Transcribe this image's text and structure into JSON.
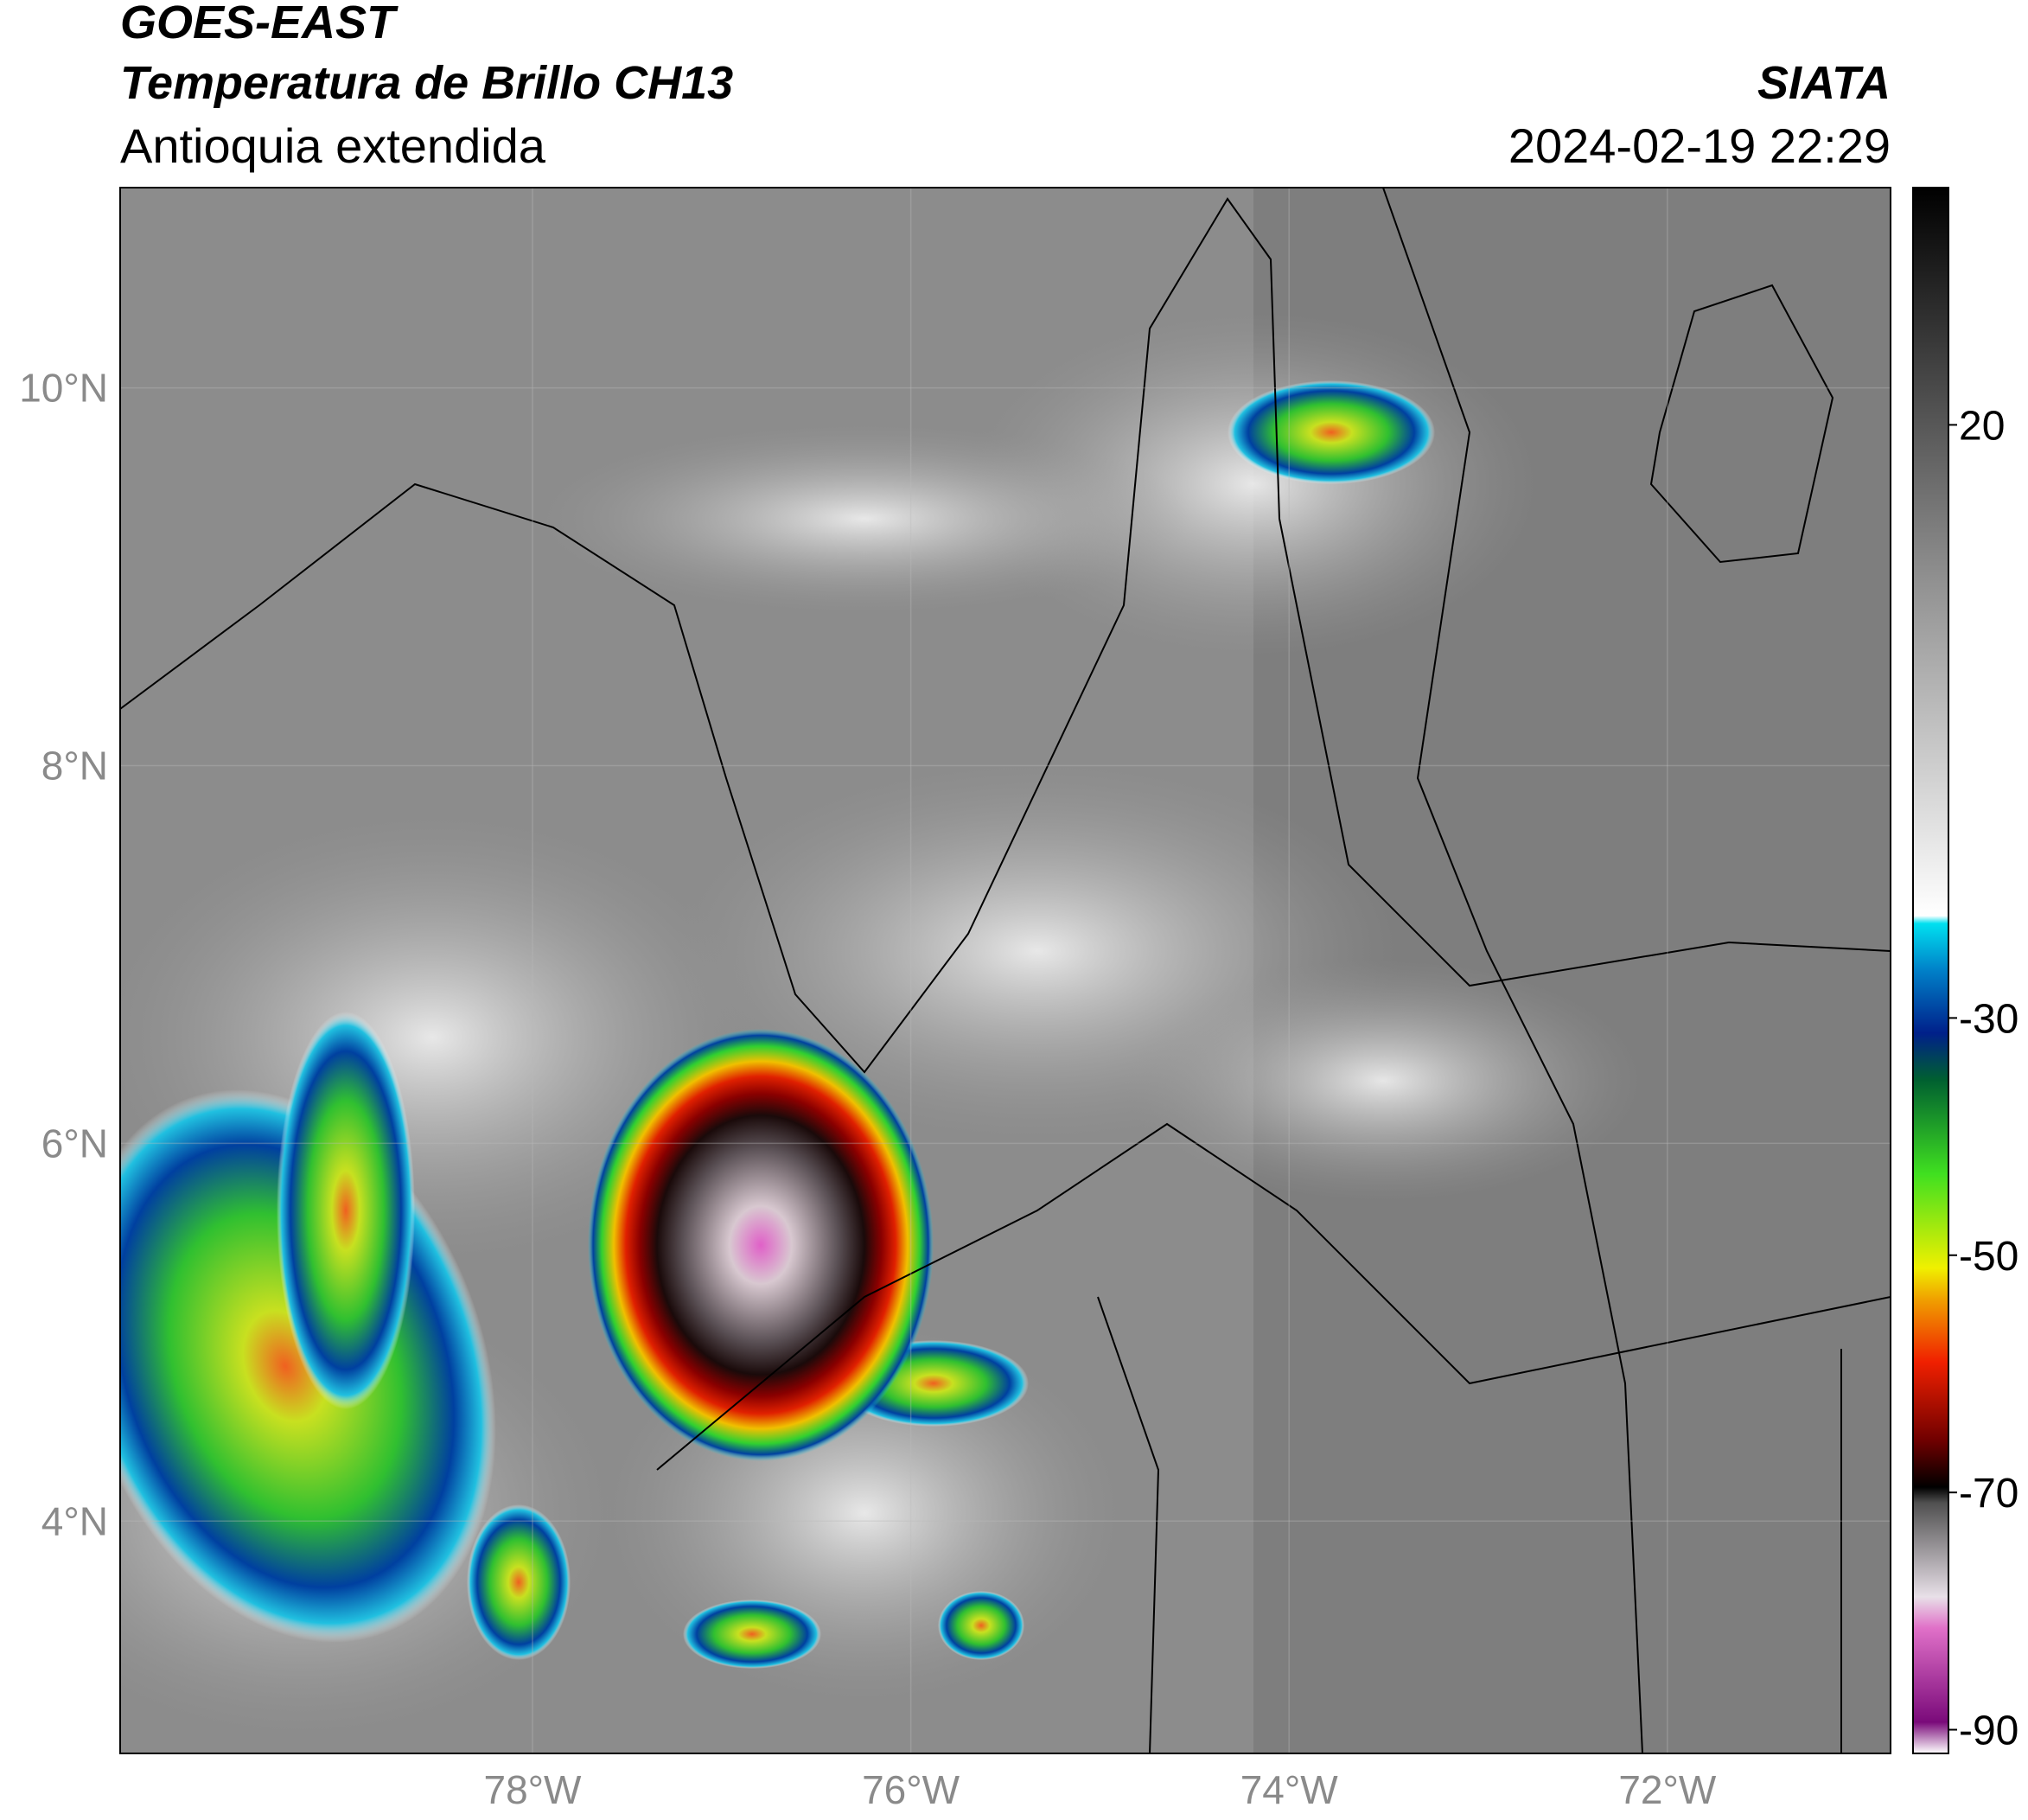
{
  "header": {
    "satellite": "GOES-EAST",
    "product": "Temperatura de Brillo CH13",
    "region": "Antioquia extendida",
    "source": "SIATA",
    "datetime": "2024-02-19 22:29"
  },
  "map": {
    "latlim": [
      2.77,
      11.06
    ],
    "lonlim": [
      -80.18,
      -70.82
    ],
    "lat_ticks": [
      {
        "value": 10,
        "label": "10°N"
      },
      {
        "value": 8,
        "label": "8°N"
      },
      {
        "value": 6,
        "label": "6°N"
      },
      {
        "value": 4,
        "label": "4°N"
      }
    ],
    "lon_ticks": [
      {
        "value": -78,
        "label": "78°W"
      },
      {
        "value": -76,
        "label": "76°W"
      },
      {
        "value": -74,
        "label": "74°W"
      },
      {
        "value": -72,
        "label": "72°W"
      }
    ]
  },
  "colorbar": {
    "lim": [
      -92,
      40
    ],
    "ticks": [
      20,
      -30,
      -50,
      -70,
      -90
    ]
  }
}
